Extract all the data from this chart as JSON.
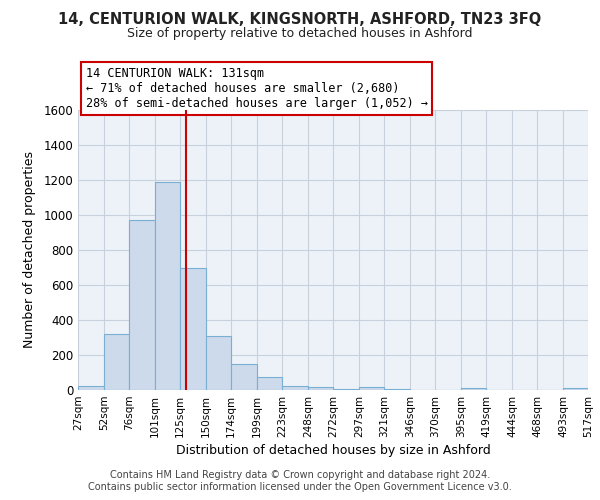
{
  "title": "14, CENTURION WALK, KINGSNORTH, ASHFORD, TN23 3FQ",
  "subtitle": "Size of property relative to detached houses in Ashford",
  "xlabel": "Distribution of detached houses by size in Ashford",
  "ylabel": "Number of detached properties",
  "bar_color": "#ccdaeb",
  "bar_edge_color": "#7aafd4",
  "bg_axes_color": "#edf2f9",
  "grid_color": "#c8d0dc",
  "vline_color": "#cc0000",
  "vline_x": 131,
  "annotation_title": "14 CENTURION WALK: 131sqm",
  "annotation_line1": "← 71% of detached houses are smaller (2,680)",
  "annotation_line2": "28% of semi-detached houses are larger (1,052) →",
  "bin_edges": [
    27,
    52,
    76,
    101,
    125,
    150,
    174,
    199,
    223,
    248,
    272,
    297,
    321,
    346,
    370,
    395,
    419,
    444,
    468,
    493,
    517
  ],
  "bin_labels": [
    "27sqm",
    "52sqm",
    "76sqm",
    "101sqm",
    "125sqm",
    "150sqm",
    "174sqm",
    "199sqm",
    "223sqm",
    "248sqm",
    "272sqm",
    "297sqm",
    "321sqm",
    "346sqm",
    "370sqm",
    "395sqm",
    "419sqm",
    "444sqm",
    "468sqm",
    "493sqm",
    "517sqm"
  ],
  "counts": [
    25,
    320,
    970,
    1190,
    700,
    310,
    150,
    75,
    25,
    15,
    5,
    15,
    5,
    0,
    0,
    10,
    0,
    0,
    0,
    10
  ],
  "ylim": [
    0,
    1600
  ],
  "yticks": [
    0,
    200,
    400,
    600,
    800,
    1000,
    1200,
    1400,
    1600
  ],
  "footer1": "Contains HM Land Registry data © Crown copyright and database right 2024.",
  "footer2": "Contains public sector information licensed under the Open Government Licence v3.0."
}
